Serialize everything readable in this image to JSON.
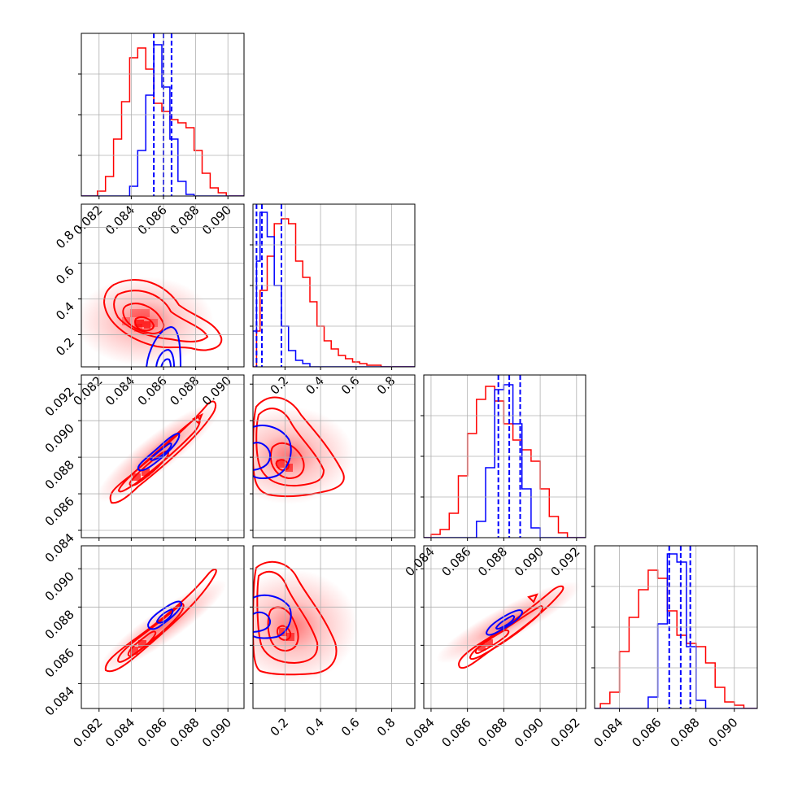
{
  "figure": {
    "type": "corner-plot",
    "colors": {
      "series_a": "#ff0000",
      "series_b": "#0000ff",
      "grid": "#b0b0b0",
      "frame": "#000000"
    }
  },
  "chart_data": [
    {
      "panel": "hist-1",
      "type": "histogram",
      "x_ticks": [
        "0.082",
        "0.084",
        "0.086",
        "0.088",
        "0.090"
      ],
      "x_range": [
        0.0809,
        0.091
      ],
      "y_range": [
        0,
        1.0
      ],
      "series": [
        {
          "color": "red",
          "bins": [
            0.0809,
            0.0819,
            0.0824,
            0.0829,
            0.0834,
            0.0839,
            0.0844,
            0.0849,
            0.0854,
            0.0859,
            0.0864,
            0.0869,
            0.0874,
            0.0879,
            0.0884,
            0.0889,
            0.0894,
            0.0899,
            0.091
          ],
          "values": [
            0.0,
            0.03,
            0.12,
            0.35,
            0.58,
            0.85,
            0.91,
            0.78,
            0.57,
            0.52,
            0.47,
            0.45,
            0.42,
            0.28,
            0.14,
            0.05,
            0.02,
            0.0
          ]
        },
        {
          "color": "blue",
          "bins": [
            0.0809,
            0.0839,
            0.0844,
            0.0849,
            0.0854,
            0.0859,
            0.0864,
            0.0869,
            0.0874,
            0.0879,
            0.091
          ],
          "values": [
            0.0,
            0.06,
            0.28,
            0.62,
            0.93,
            0.67,
            0.35,
            0.09,
            0.01,
            0.0
          ]
        }
      ],
      "quantile_lines": [
        0.0854,
        0.086,
        0.0865
      ]
    },
    {
      "panel": "scatter-2-1",
      "type": "scatter-contour",
      "x_ticks": [
        "0.082",
        "0.084",
        "0.086",
        "0.088",
        "0.090"
      ],
      "y_ticks": [
        "0.2",
        "0.4",
        "0.6",
        "0.8"
      ],
      "x_range": [
        0.0809,
        0.091
      ],
      "y_range": [
        0.02,
        0.93
      ]
    },
    {
      "panel": "hist-2",
      "type": "histogram",
      "x_ticks": [
        "0.2",
        "0.4",
        "0.6",
        "0.8"
      ],
      "x_range": [
        0.02,
        0.93
      ],
      "y_range": [
        0,
        1.0
      ],
      "series": [
        {
          "color": "red",
          "bins": [
            0.02,
            0.04,
            0.06,
            0.1,
            0.14,
            0.18,
            0.22,
            0.26,
            0.3,
            0.34,
            0.38,
            0.42,
            0.46,
            0.5,
            0.54,
            0.58,
            0.62,
            0.66,
            0.7,
            0.74,
            0.78,
            0.82,
            0.86,
            0.9,
            0.93
          ],
          "values": [
            0.0,
            0.22,
            0.47,
            0.68,
            0.88,
            0.91,
            0.88,
            0.65,
            0.55,
            0.4,
            0.25,
            0.16,
            0.11,
            0.07,
            0.05,
            0.03,
            0.02,
            0.01,
            0.01,
            0.0,
            0.0,
            0.0,
            0.0,
            0.0
          ]
        },
        {
          "color": "blue",
          "bins": [
            0.02,
            0.04,
            0.06,
            0.1,
            0.14,
            0.18,
            0.22,
            0.26,
            0.3,
            0.34,
            0.38,
            0.93
          ],
          "values": [
            0.22,
            0.65,
            0.95,
            0.8,
            0.5,
            0.25,
            0.1,
            0.04,
            0.02,
            0.0,
            0.0
          ]
        }
      ],
      "quantile_lines": [
        0.04,
        0.07,
        0.18
      ]
    },
    {
      "panel": "scatter-3-1",
      "type": "scatter-contour",
      "y_ticks": [
        "0.084",
        "0.086",
        "0.088",
        "0.090",
        "0.092"
      ],
      "x_range": [
        0.0809,
        0.091
      ],
      "y_range": [
        0.0836,
        0.0925
      ]
    },
    {
      "panel": "scatter-3-2",
      "type": "scatter-contour",
      "x_range": [
        0.02,
        0.93
      ],
      "y_range": [
        0.0836,
        0.0925
      ]
    },
    {
      "panel": "hist-3",
      "type": "histogram",
      "x_ticks": [
        "0.084",
        "0.086",
        "0.088",
        "0.090",
        "0.092"
      ],
      "x_range": [
        0.0836,
        0.0925
      ],
      "y_range": [
        0,
        1.0
      ],
      "series": [
        {
          "color": "red",
          "bins": [
            0.0836,
            0.084,
            0.0845,
            0.085,
            0.0855,
            0.086,
            0.0865,
            0.087,
            0.0875,
            0.088,
            0.0885,
            0.089,
            0.0895,
            0.09,
            0.0905,
            0.091,
            0.0915,
            0.0925
          ],
          "values": [
            0.0,
            0.02,
            0.05,
            0.15,
            0.38,
            0.64,
            0.85,
            0.93,
            0.84,
            0.7,
            0.6,
            0.54,
            0.47,
            0.3,
            0.13,
            0.03,
            0.0
          ]
        },
        {
          "color": "blue",
          "bins": [
            0.0836,
            0.0865,
            0.087,
            0.0875,
            0.088,
            0.0885,
            0.089,
            0.0895,
            0.09,
            0.0925
          ],
          "values": [
            0.0,
            0.1,
            0.43,
            0.91,
            0.94,
            0.7,
            0.3,
            0.06,
            0.0
          ]
        }
      ],
      "quantile_lines": [
        0.0877,
        0.0883,
        0.0889
      ]
    },
    {
      "panel": "scatter-4-1",
      "type": "scatter-contour",
      "x_ticks": [
        "0.082",
        "0.084",
        "0.086",
        "0.088",
        "0.090"
      ],
      "y_ticks": [
        "0.084",
        "0.086",
        "0.088",
        "0.090"
      ],
      "x_range": [
        0.0809,
        0.091
      ],
      "y_range": [
        0.0827,
        0.0912
      ]
    },
    {
      "panel": "scatter-4-2",
      "type": "scatter-contour",
      "x_ticks": [
        "0.2",
        "0.4",
        "0.6",
        "0.8"
      ],
      "x_range": [
        0.02,
        0.93
      ],
      "y_range": [
        0.0827,
        0.0912
      ]
    },
    {
      "panel": "scatter-4-3",
      "type": "scatter-contour",
      "x_ticks": [
        "0.084",
        "0.086",
        "0.088",
        "0.090",
        "0.092"
      ],
      "x_range": [
        0.0836,
        0.0925
      ],
      "y_range": [
        0.0827,
        0.0912
      ]
    },
    {
      "panel": "hist-4",
      "type": "histogram",
      "x_ticks": [
        "0.084",
        "0.086",
        "0.088",
        "0.090"
      ],
      "x_range": [
        0.0827,
        0.0912
      ],
      "y_range": [
        0,
        1.0
      ],
      "series": [
        {
          "color": "red",
          "bins": [
            0.0827,
            0.083,
            0.0835,
            0.084,
            0.0845,
            0.085,
            0.0855,
            0.086,
            0.0865,
            0.087,
            0.0875,
            0.088,
            0.0885,
            0.089,
            0.0895,
            0.09,
            0.0905,
            0.0912
          ],
          "values": [
            0.0,
            0.03,
            0.1,
            0.35,
            0.56,
            0.73,
            0.85,
            0.8,
            0.6,
            0.45,
            0.4,
            0.38,
            0.28,
            0.13,
            0.04,
            0.02,
            0.0
          ]
        },
        {
          "color": "blue",
          "bins": [
            0.0827,
            0.0855,
            0.086,
            0.0865,
            0.087,
            0.0875,
            0.088,
            0.0885,
            0.0912
          ],
          "values": [
            0.0,
            0.07,
            0.52,
            0.95,
            0.9,
            0.38,
            0.05,
            0.0
          ]
        }
      ],
      "quantile_lines": [
        0.0866,
        0.0872,
        0.0877
      ]
    }
  ]
}
